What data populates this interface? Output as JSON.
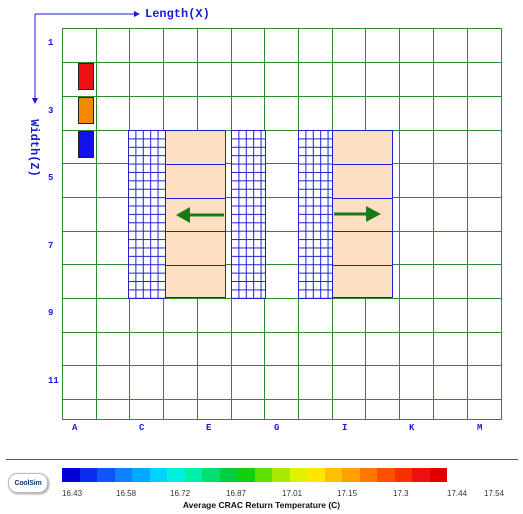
{
  "axes": {
    "x_title": "Length(X)",
    "y_title": "Width(Z)"
  },
  "row_labels": [
    "1",
    "3",
    "5",
    "7",
    "9",
    "11"
  ],
  "col_labels": [
    "A",
    "C",
    "E",
    "G",
    "I",
    "K",
    "M"
  ],
  "crac_units": [
    {
      "name": "crac-red",
      "color": "#ee1111"
    },
    {
      "name": "crac-orange",
      "color": "#f28a00"
    },
    {
      "name": "crac-blue",
      "color": "#1111ee"
    }
  ],
  "airflow": {
    "left_rack_direction": "left",
    "right_rack_direction": "right",
    "arrow_color": "#187a18"
  },
  "legend": {
    "logo_text": "CoolSim",
    "title": "Average CRAC Return Temperature (C)",
    "ticks": [
      "16.43",
      "16.58",
      "16.72",
      "16.87",
      "17.01",
      "17.15",
      "17.3",
      "17.44",
      "17.54"
    ],
    "colors": [
      "#0000d6",
      "#0a2cf0",
      "#0f55ff",
      "#0f80ff",
      "#00aaff",
      "#00d2ff",
      "#00f0e0",
      "#00f0a8",
      "#00e070",
      "#00d040",
      "#10d010",
      "#60e000",
      "#a8e800",
      "#e0f000",
      "#ffe800",
      "#ffc000",
      "#ffa000",
      "#ff7800",
      "#ff5000",
      "#f83000",
      "#ee1010",
      "#e00000"
    ]
  },
  "colors": {
    "grid": "#2e8b2e",
    "tiles": "#2020d0",
    "rack_fill": "#fde0c4",
    "label": "#1a1ad6"
  }
}
